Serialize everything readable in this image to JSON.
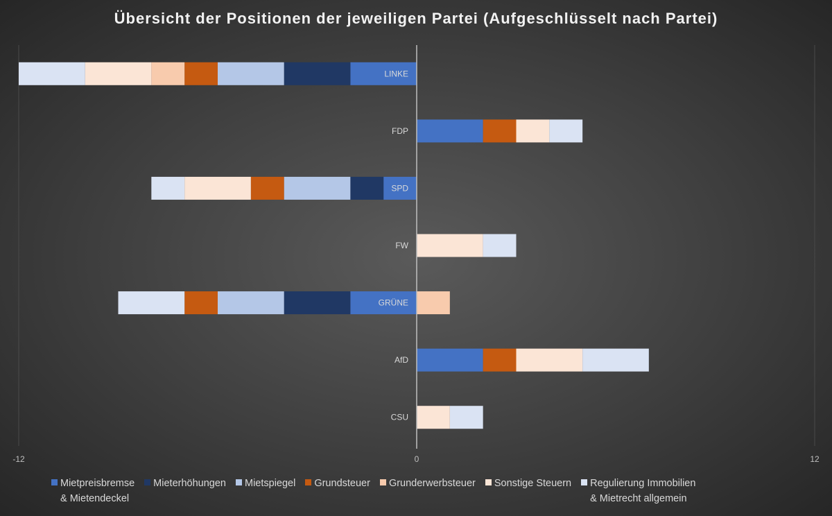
{
  "chart_data": {
    "type": "bar",
    "orientation": "horizontal",
    "stacked": true,
    "title": "Übersicht der Positionen der jeweiligen Partei (Aufgeschlüsselt nach Partei)",
    "categories": [
      "LINKE",
      "FDP",
      "SPD",
      "FW",
      "GRÜNE",
      "AfD",
      "CSU"
    ],
    "xlim": [
      -12,
      12
    ],
    "xticks": [
      "-12",
      "0",
      "12"
    ],
    "grid": false,
    "legend_position": "bottom",
    "series": [
      {
        "name": "Mietpreisbremse\n& Mietendeckel",
        "color": "#4472C4",
        "values": [
          -2,
          2,
          -1,
          0,
          -2,
          2,
          0
        ]
      },
      {
        "name": "Mieterhöhungen",
        "color": "#203864",
        "values": [
          -2,
          0,
          -1,
          0,
          -2,
          0,
          0
        ]
      },
      {
        "name": "Mietspiegel",
        "color": "#B4C7E7",
        "values": [
          -2,
          0,
          -2,
          0,
          -2,
          0,
          0
        ]
      },
      {
        "name": "Grundsteuer",
        "color": "#C55A11",
        "values": [
          -1,
          1,
          -1,
          0,
          -1,
          1,
          0
        ]
      },
      {
        "name": "Grunderwerbsteuer",
        "color": "#F8CBAD",
        "values": [
          -1,
          0,
          0,
          0,
          1,
          0,
          0
        ]
      },
      {
        "name": "Sonstige Steuern",
        "color": "#FBE5D6",
        "values": [
          -2,
          1,
          -2,
          2,
          0,
          2,
          1
        ]
      },
      {
        "name": "Regulierung Immobilien\n& Mietrecht allgemein",
        "color": "#DAE3F3",
        "values": [
          -2,
          1,
          -1,
          1,
          -2,
          2,
          1
        ]
      }
    ]
  }
}
